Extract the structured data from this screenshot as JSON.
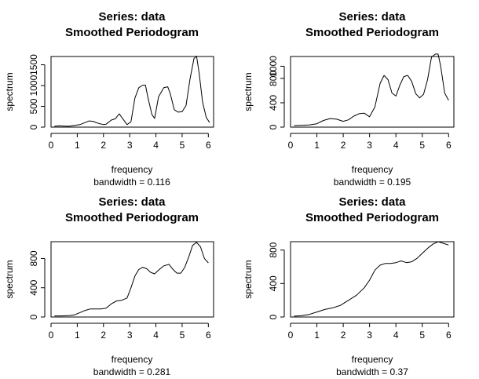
{
  "chart_data": [
    {
      "type": "line",
      "title": "Series: data",
      "subtitle": "Smoothed Periodogram",
      "xlabel": "frequency",
      "sublabel": "bandwidth = 0.116",
      "ylabel": "spectrum",
      "xlim": [
        0,
        6.2
      ],
      "ylim": [
        0,
        1700
      ],
      "xticks": [
        "0",
        "1",
        "2",
        "3",
        "4",
        "5",
        "6"
      ],
      "yticks": [
        "0",
        "500",
        "1000",
        "1500"
      ],
      "x": [
        0.13,
        0.3,
        0.5,
        0.7,
        0.9,
        1.1,
        1.3,
        1.45,
        1.6,
        1.8,
        2.0,
        2.1,
        2.3,
        2.45,
        2.6,
        2.75,
        2.9,
        3.05,
        3.2,
        3.35,
        3.5,
        3.6,
        3.7,
        3.85,
        3.95,
        4.1,
        4.3,
        4.45,
        4.55,
        4.7,
        4.85,
        5.0,
        5.15,
        5.3,
        5.45,
        5.55,
        5.65,
        5.78,
        5.92,
        6.05
      ],
      "y": [
        20,
        30,
        25,
        20,
        40,
        60,
        110,
        150,
        140,
        90,
        60,
        70,
        170,
        200,
        320,
        190,
        60,
        130,
        700,
        950,
        1010,
        1010,
        700,
        300,
        210,
        730,
        950,
        970,
        800,
        420,
        360,
        370,
        520,
        1160,
        1650,
        1710,
        1300,
        600,
        230,
        110
      ]
    },
    {
      "type": "line",
      "title": "Series: data",
      "subtitle": "Smoothed Periodogram",
      "xlabel": "frequency",
      "sublabel": "bandwidth = 0.195",
      "ylabel": "spectrum",
      "xlim": [
        0,
        6.2
      ],
      "ylim": [
        0,
        1160
      ],
      "xticks": [
        "0",
        "1",
        "2",
        "3",
        "4",
        "5",
        "6"
      ],
      "yticks": [
        "0",
        "400",
        "800",
        "1000"
      ],
      "x": [
        0.13,
        0.4,
        0.7,
        1.0,
        1.25,
        1.5,
        1.75,
        2.0,
        2.2,
        2.4,
        2.6,
        2.8,
        3.0,
        3.2,
        3.4,
        3.55,
        3.7,
        3.85,
        4.0,
        4.15,
        4.3,
        4.45,
        4.6,
        4.75,
        4.9,
        5.05,
        5.2,
        5.35,
        5.5,
        5.6,
        5.7,
        5.85,
        6.0
      ],
      "y": [
        25,
        30,
        35,
        55,
        110,
        140,
        130,
        95,
        120,
        180,
        220,
        230,
        170,
        330,
        720,
        850,
        780,
        560,
        510,
        690,
        830,
        850,
        750,
        550,
        480,
        540,
        780,
        1150,
        1200,
        1200,
        1000,
        560,
        440
      ]
    },
    {
      "type": "line",
      "title": "Series: data",
      "subtitle": "Smoothed Periodogram",
      "xlabel": "frequency",
      "sublabel": "bandwidth = 0.281",
      "ylabel": "spectrum",
      "xlim": [
        0,
        6.2
      ],
      "ylim": [
        0,
        1030
      ],
      "xticks": [
        "0",
        "1",
        "2",
        "3",
        "4",
        "5",
        "6"
      ],
      "yticks": [
        "0",
        "400",
        "800"
      ],
      "x": [
        0.13,
        0.4,
        0.7,
        0.9,
        1.1,
        1.3,
        1.5,
        1.7,
        1.9,
        2.1,
        2.3,
        2.5,
        2.7,
        2.9,
        3.05,
        3.2,
        3.35,
        3.5,
        3.65,
        3.8,
        3.95,
        4.1,
        4.3,
        4.5,
        4.65,
        4.8,
        4.95,
        5.1,
        5.25,
        5.4,
        5.55,
        5.7,
        5.85,
        6.0
      ],
      "y": [
        15,
        15,
        20,
        30,
        60,
        90,
        110,
        110,
        110,
        120,
        180,
        220,
        230,
        260,
        400,
        560,
        650,
        680,
        660,
        610,
        590,
        640,
        700,
        720,
        650,
        600,
        600,
        680,
        820,
        980,
        1020,
        960,
        800,
        740
      ]
    },
    {
      "type": "line",
      "title": "Series: data",
      "subtitle": "Smoothed Periodogram",
      "xlabel": "frequency",
      "sublabel": "bandwidth = 0.37",
      "ylabel": "spectrum",
      "xlim": [
        0,
        6.2
      ],
      "ylim": [
        0,
        900
      ],
      "xticks": [
        "0",
        "1",
        "2",
        "3",
        "4",
        "5",
        "6"
      ],
      "yticks": [
        "0",
        "400",
        "800"
      ],
      "x": [
        0.13,
        0.4,
        0.7,
        1.0,
        1.3,
        1.6,
        1.9,
        2.2,
        2.5,
        2.8,
        3.0,
        3.2,
        3.4,
        3.6,
        3.8,
        4.0,
        4.2,
        4.4,
        4.6,
        4.8,
        5.0,
        5.2,
        5.4,
        5.6,
        5.8,
        6.0
      ],
      "y": [
        10,
        15,
        30,
        60,
        90,
        110,
        140,
        200,
        260,
        350,
        440,
        560,
        620,
        640,
        640,
        650,
        670,
        650,
        660,
        700,
        760,
        820,
        870,
        900,
        880,
        860
      ]
    }
  ]
}
